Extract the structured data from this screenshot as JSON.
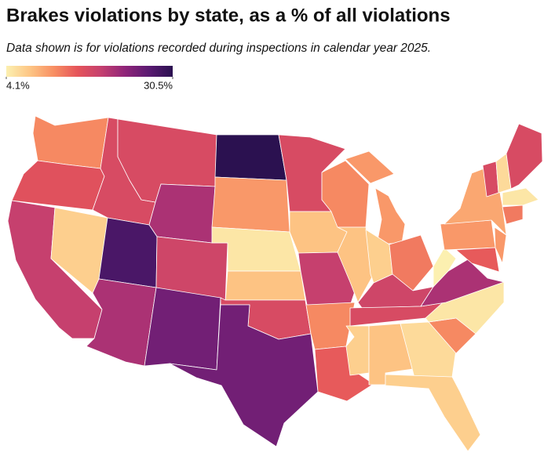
{
  "chart_data": {
    "type": "choropleth",
    "title": "Brakes violations by state, as a % of all violations",
    "subtitle": "Data shown is for violations recorded during inspections in calendar year 2025.",
    "values": [
      12,
      16,
      19,
      7,
      17,
      17,
      21,
      28,
      21,
      18,
      25,
      30.5,
      11,
      5,
      8,
      17,
      25,
      17,
      8,
      19,
      12,
      15,
      12,
      8,
      11,
      7,
      13,
      18,
      17,
      7,
      8,
      6,
      7,
      12,
      5,
      21,
      4.1,
      11,
      10,
      15,
      11,
      13,
      5,
      17,
      6,
      17
    ],
    "colorlim": [
      4.1,
      30.5
    ],
    "colorticks": [
      {
        "value": 4.1,
        "label": "4.1%"
      },
      {
        "value": 30.5,
        "label": "30.5%"
      }
    ],
    "colorscale": [
      "#fcf0b0",
      "#fdc584",
      "#f88f63",
      "#e5545a",
      "#c43f6f",
      "#8f2479",
      "#5a1a72",
      "#2b1150"
    ]
  }
}
